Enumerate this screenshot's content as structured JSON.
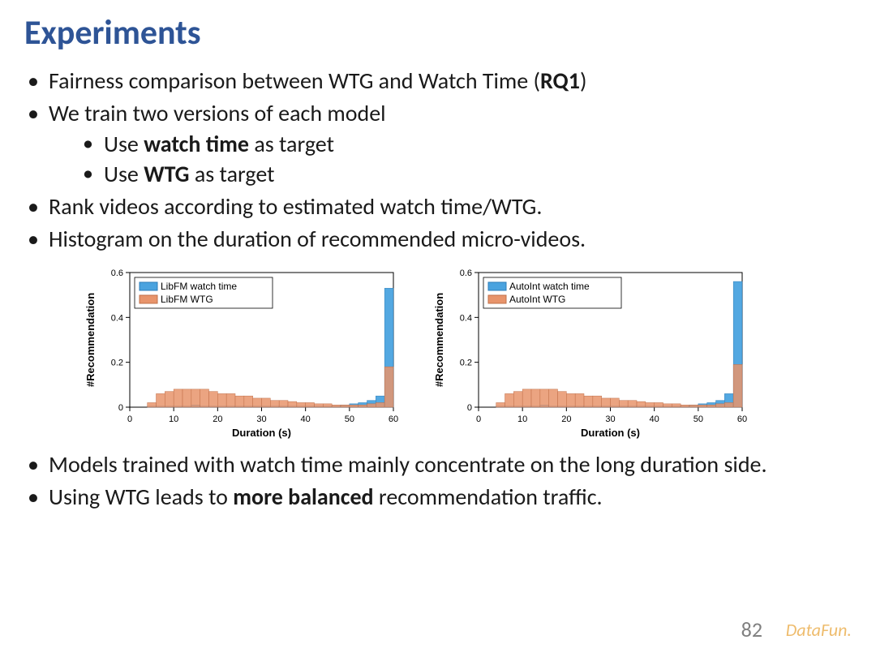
{
  "title": "Experiments",
  "title_color": "#2e5496",
  "bullets": {
    "b1_pre": "Fairness comparison between WTG and Watch Time (",
    "b1_bold": "RQ1",
    "b1_post": ")",
    "b2": "We train two versions of each model",
    "b2a_pre": "Use ",
    "b2a_bold": "watch time",
    "b2a_post": " as target",
    "b2b_pre": "Use ",
    "b2b_bold": "WTG",
    "b2b_post": " as target",
    "b3": "Rank videos according to estimated watch time/WTG.",
    "b4": "Histogram on the duration of recommended micro-videos.",
    "b5": "Models trained with watch time mainly concentrate on the long duration side.",
    "b6_pre": "Using WTG leads to ",
    "b6_bold": "more balanced",
    "b6_post": " recommendation traffic."
  },
  "chart_left": {
    "type": "histogram",
    "legend": [
      "LibFM watch time",
      "LibFM WTG"
    ],
    "colors": {
      "watch_time": "#4aa3df",
      "wtg": "#e8946b",
      "wtg_edge": "#c0704a"
    },
    "xlabel": "Duration (s)",
    "ylabel": "#Recommendation",
    "xlim": [
      0,
      60
    ],
    "ylim": [
      0,
      0.6
    ],
    "xtick_step": 10,
    "ytick_step": 0.2,
    "label_fontsize": 13,
    "tick_fontsize": 11,
    "legend_fontsize": 12,
    "background_color": "#ffffff",
    "axis_color": "#000000",
    "bin_edges": [
      0,
      2,
      4,
      6,
      8,
      10,
      12,
      14,
      16,
      18,
      20,
      22,
      24,
      26,
      28,
      30,
      32,
      34,
      36,
      38,
      40,
      42,
      44,
      46,
      48,
      50,
      52,
      54,
      56,
      58,
      60
    ],
    "watch_time_vals": [
      0,
      0,
      0.005,
      0.005,
      0.005,
      0.005,
      0.005,
      0.01,
      0.005,
      0.005,
      0.005,
      0.005,
      0.005,
      0.005,
      0.005,
      0.005,
      0.005,
      0.005,
      0.005,
      0.005,
      0.005,
      0.005,
      0.005,
      0.005,
      0.01,
      0.015,
      0.02,
      0.03,
      0.05,
      0.53
    ],
    "wtg_vals": [
      0,
      0,
      0.02,
      0.06,
      0.07,
      0.08,
      0.08,
      0.08,
      0.08,
      0.07,
      0.06,
      0.06,
      0.05,
      0.05,
      0.04,
      0.04,
      0.03,
      0.03,
      0.025,
      0.02,
      0.02,
      0.015,
      0.015,
      0.01,
      0.01,
      0.01,
      0.01,
      0.015,
      0.02,
      0.18
    ]
  },
  "chart_right": {
    "type": "histogram",
    "legend": [
      "AutoInt watch time",
      "AutoInt WTG"
    ],
    "colors": {
      "watch_time": "#4aa3df",
      "wtg": "#e8946b",
      "wtg_edge": "#c0704a"
    },
    "xlabel": "Duration (s)",
    "ylabel": "#Recommendation",
    "xlim": [
      0,
      60
    ],
    "ylim": [
      0,
      0.6
    ],
    "xtick_step": 10,
    "ytick_step": 0.2,
    "label_fontsize": 13,
    "tick_fontsize": 11,
    "legend_fontsize": 12,
    "background_color": "#ffffff",
    "axis_color": "#000000",
    "bin_edges": [
      0,
      2,
      4,
      6,
      8,
      10,
      12,
      14,
      16,
      18,
      20,
      22,
      24,
      26,
      28,
      30,
      32,
      34,
      36,
      38,
      40,
      42,
      44,
      46,
      48,
      50,
      52,
      54,
      56,
      58,
      60
    ],
    "watch_time_vals": [
      0,
      0,
      0.005,
      0.005,
      0.005,
      0.005,
      0.005,
      0.01,
      0.005,
      0.005,
      0.005,
      0.005,
      0.005,
      0.005,
      0.005,
      0.005,
      0.005,
      0.005,
      0.005,
      0.005,
      0.005,
      0.005,
      0.005,
      0.005,
      0.01,
      0.015,
      0.02,
      0.03,
      0.06,
      0.56
    ],
    "wtg_vals": [
      0,
      0,
      0.02,
      0.06,
      0.07,
      0.08,
      0.08,
      0.08,
      0.08,
      0.07,
      0.06,
      0.06,
      0.05,
      0.05,
      0.04,
      0.04,
      0.03,
      0.03,
      0.025,
      0.02,
      0.02,
      0.015,
      0.015,
      0.01,
      0.01,
      0.01,
      0.01,
      0.015,
      0.02,
      0.19
    ]
  },
  "page_number": "82",
  "watermark": "DataFun."
}
